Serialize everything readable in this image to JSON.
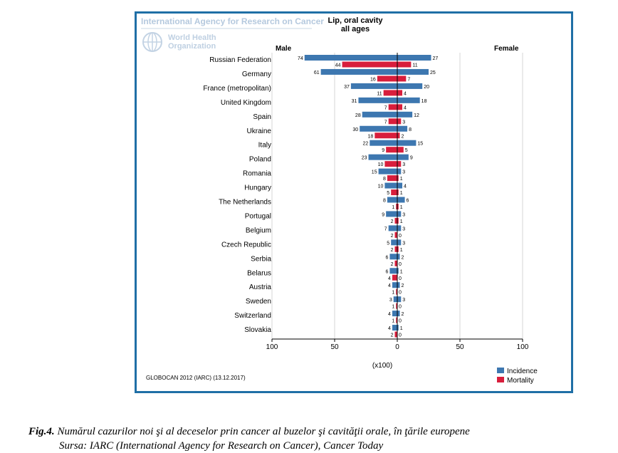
{
  "header": {
    "agency": "International Agency for Research on Cancer",
    "who_line1": "World Health",
    "who_line2": "Organization"
  },
  "chart_data": {
    "type": "bar",
    "orientation": "horizontal",
    "title": "Lip, oral cavity",
    "subtitle": "all ages",
    "left_label": "Male",
    "right_label": "Female",
    "xlabel": "(x100)",
    "xlim": [
      -100,
      100
    ],
    "ticks": [
      100,
      50,
      0,
      50,
      100
    ],
    "tick_values": [
      -100,
      -50,
      0,
      50,
      100
    ],
    "categories": [
      "Russian Federation",
      "Germany",
      "France (metropolitan)",
      "United Kingdom",
      "Spain",
      "Ukraine",
      "Italy",
      "Poland",
      "Romania",
      "Hungary",
      "The Netherlands",
      "Portugal",
      "Belgium",
      "Czech Republic",
      "Serbia",
      "Belarus",
      "Austria",
      "Sweden",
      "Switzerland",
      "Slovakia"
    ],
    "series": [
      {
        "name": "Incidence",
        "side": "male",
        "values": [
          74,
          61,
          37,
          31,
          28,
          30,
          22,
          23,
          15,
          10,
          8,
          9,
          7,
          5,
          6,
          6,
          4,
          3,
          4,
          4
        ]
      },
      {
        "name": "Mortality",
        "side": "male",
        "values": [
          44,
          16,
          11,
          7,
          7,
          18,
          9,
          10,
          8,
          5,
          1,
          2,
          2,
          2,
          2,
          4,
          1,
          1,
          1,
          2
        ]
      },
      {
        "name": "Incidence",
        "side": "female",
        "values": [
          27,
          25,
          20,
          18,
          12,
          8,
          15,
          9,
          3,
          4,
          6,
          3,
          3,
          3,
          2,
          1,
          2,
          3,
          2,
          1
        ]
      },
      {
        "name": "Mortality",
        "side": "female",
        "values": [
          11,
          7,
          4,
          4,
          3,
          2,
          5,
          3,
          1,
          1,
          1,
          1,
          0,
          1,
          0,
          0,
          0,
          0,
          0,
          0
        ]
      }
    ],
    "legend": [
      {
        "label": "Incidence",
        "color": "#3d77b0"
      },
      {
        "label": "Mortality",
        "color": "#d81e3c"
      }
    ],
    "source": "GLOBOCAN 2012 (IARC) (13.12.2017)"
  },
  "caption": {
    "fig_label": "Fig.4.",
    "text": " Numărul cazurilor noi şi al deceselor prin cancer al buzelor şi cavităţii orale, în ţările europene",
    "source_line": "Sursa: IARC (International Agency for Research on Cancer), Cancer Today"
  }
}
